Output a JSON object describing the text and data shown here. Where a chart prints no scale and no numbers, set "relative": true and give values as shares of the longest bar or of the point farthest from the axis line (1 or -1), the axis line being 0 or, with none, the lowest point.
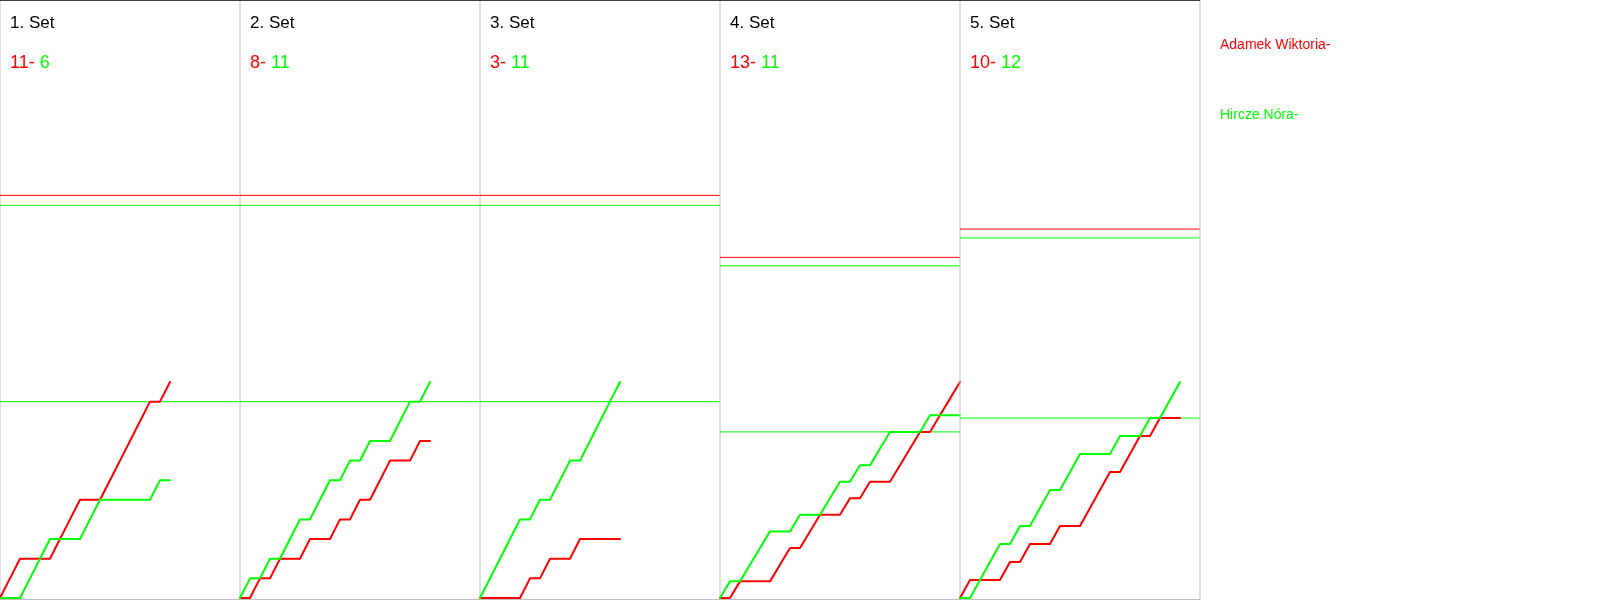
{
  "chart_data": [
    {
      "type": "line",
      "title": "1. Set",
      "annotations": [
        "11-",
        "6"
      ],
      "relative": true,
      "categories": [
        null,
        null,
        null,
        null,
        null,
        null,
        null,
        null,
        null,
        null,
        null,
        null,
        null,
        null,
        null,
        null,
        null,
        null,
        null,
        null,
        null,
        null,
        null,
        null,
        null
      ],
      "series": [
        {
          "color": "#ff0000",
          "values": [
            0,
            0.091,
            0.182,
            0.182,
            0.182,
            0.182,
            0.273,
            0.364,
            0.455,
            0.455,
            0.455,
            0.545,
            0.636,
            0.727,
            0.818,
            0.909,
            0.909,
            1,
            null,
            null,
            null,
            null,
            null,
            null,
            null
          ]
        },
        {
          "color": "#00ff00",
          "values": [
            0,
            0,
            0,
            0.091,
            0.182,
            0.273,
            0.273,
            0.273,
            0.273,
            0.364,
            0.455,
            0.455,
            0.455,
            0.455,
            0.455,
            0.455,
            0.545,
            0.545,
            null,
            null,
            null,
            null,
            null,
            null,
            null
          ]
        }
      ],
      "ref_lines": [
        {
          "axis": "y",
          "value": 1.864,
          "color": "#ff0000"
        },
        {
          "axis": "y",
          "value": 1.818,
          "color": "#00ff00"
        },
        {
          "axis": "y",
          "value": 0.909,
          "color": "#00ff00"
        }
      ]
    },
    {
      "type": "line",
      "title": "2. Set",
      "annotations": [
        "8-",
        "11"
      ],
      "relative": true,
      "categories": [
        null,
        null,
        null,
        null,
        null,
        null,
        null,
        null,
        null,
        null,
        null,
        null,
        null,
        null,
        null,
        null,
        null,
        null,
        null,
        null,
        null,
        null,
        null,
        null,
        null
      ],
      "series": [
        {
          "color": "#ff0000",
          "values": [
            0,
            0,
            0.091,
            0.091,
            0.182,
            0.182,
            0.182,
            0.273,
            0.273,
            0.273,
            0.364,
            0.364,
            0.455,
            0.455,
            0.545,
            0.636,
            0.636,
            0.636,
            0.727,
            0.727,
            null,
            null,
            null,
            null,
            null
          ]
        },
        {
          "color": "#00ff00",
          "values": [
            0,
            0.091,
            0.091,
            0.182,
            0.182,
            0.273,
            0.364,
            0.364,
            0.455,
            0.545,
            0.545,
            0.636,
            0.636,
            0.727,
            0.727,
            0.727,
            0.818,
            0.909,
            0.909,
            1,
            null,
            null,
            null,
            null,
            null
          ]
        }
      ],
      "ref_lines": [
        {
          "axis": "y",
          "value": 1.864,
          "color": "#ff0000"
        },
        {
          "axis": "y",
          "value": 1.818,
          "color": "#00ff00"
        },
        {
          "axis": "y",
          "value": 0.909,
          "color": "#00ff00"
        }
      ]
    },
    {
      "type": "line",
      "title": "3. Set",
      "annotations": [
        "3-",
        "11"
      ],
      "relative": true,
      "categories": [
        null,
        null,
        null,
        null,
        null,
        null,
        null,
        null,
        null,
        null,
        null,
        null,
        null,
        null,
        null,
        null,
        null,
        null,
        null,
        null,
        null,
        null,
        null,
        null,
        null
      ],
      "series": [
        {
          "color": "#ff0000",
          "values": [
            0,
            0,
            0,
            0,
            0,
            0.091,
            0.091,
            0.182,
            0.182,
            0.182,
            0.273,
            0.273,
            0.273,
            0.273,
            0.273,
            null,
            null,
            null,
            null,
            null,
            null,
            null,
            null,
            null,
            null
          ]
        },
        {
          "color": "#00ff00",
          "values": [
            0,
            0.091,
            0.182,
            0.273,
            0.364,
            0.364,
            0.455,
            0.455,
            0.545,
            0.636,
            0.636,
            0.727,
            0.818,
            0.909,
            1,
            null,
            null,
            null,
            null,
            null,
            null,
            null,
            null,
            null,
            null
          ]
        }
      ],
      "ref_lines": [
        {
          "axis": "y",
          "value": 1.864,
          "color": "#ff0000"
        },
        {
          "axis": "y",
          "value": 1.818,
          "color": "#00ff00"
        },
        {
          "axis": "y",
          "value": 0.909,
          "color": "#00ff00"
        }
      ]
    },
    {
      "type": "line",
      "title": "4. Set",
      "annotations": [
        "13-",
        "11"
      ],
      "relative": true,
      "categories": [
        null,
        null,
        null,
        null,
        null,
        null,
        null,
        null,
        null,
        null,
        null,
        null,
        null,
        null,
        null,
        null,
        null,
        null,
        null,
        null,
        null,
        null,
        null,
        null,
        null
      ],
      "series": [
        {
          "color": "#ff0000",
          "values": [
            0,
            0,
            0.077,
            0.077,
            0.077,
            0.077,
            0.154,
            0.231,
            0.231,
            0.308,
            0.385,
            0.385,
            0.385,
            0.462,
            0.462,
            0.538,
            0.538,
            0.538,
            0.615,
            0.692,
            0.769,
            0.769,
            0.846,
            0.923,
            1
          ]
        },
        {
          "color": "#00ff00",
          "values": [
            0,
            0.077,
            0.077,
            0.154,
            0.231,
            0.308,
            0.308,
            0.308,
            0.385,
            0.385,
            0.385,
            0.462,
            0.538,
            0.538,
            0.615,
            0.615,
            0.692,
            0.769,
            0.769,
            0.769,
            0.769,
            0.846,
            0.846,
            0.846,
            0.846
          ]
        }
      ],
      "ref_lines": [
        {
          "axis": "y",
          "value": 1.577,
          "color": "#ff0000"
        },
        {
          "axis": "y",
          "value": 1.538,
          "color": "#00ff00"
        },
        {
          "axis": "y",
          "value": 0.769,
          "color": "#00ff00"
        }
      ]
    },
    {
      "type": "line",
      "title": "5. Set",
      "annotations": [
        "10-",
        "12"
      ],
      "relative": true,
      "categories": [
        null,
        null,
        null,
        null,
        null,
        null,
        null,
        null,
        null,
        null,
        null,
        null,
        null,
        null,
        null,
        null,
        null,
        null,
        null,
        null,
        null,
        null,
        null,
        null,
        null
      ],
      "series": [
        {
          "name": "Adamek Wiktoria-",
          "color": "#ff0000",
          "values": [
            0,
            0.083,
            0.083,
            0.083,
            0.083,
            0.167,
            0.167,
            0.25,
            0.25,
            0.25,
            0.333,
            0.333,
            0.333,
            0.417,
            0.5,
            0.583,
            0.583,
            0.667,
            0.75,
            0.75,
            0.833,
            0.833,
            0.833,
            null,
            null
          ]
        },
        {
          "name": "Hircze Nóra-",
          "color": "#00ff00",
          "values": [
            0,
            0,
            0.083,
            0.167,
            0.25,
            0.25,
            0.333,
            0.333,
            0.417,
            0.5,
            0.5,
            0.583,
            0.667,
            0.667,
            0.667,
            0.667,
            0.75,
            0.75,
            0.75,
            0.833,
            0.833,
            0.917,
            1,
            null,
            null
          ]
        }
      ],
      "ref_lines": [
        {
          "axis": "y",
          "value": 1.708,
          "color": "#ff0000"
        },
        {
          "axis": "y",
          "value": 1.667,
          "color": "#00ff00"
        },
        {
          "axis": "y",
          "value": 0.833,
          "color": "#00ff00"
        }
      ]
    }
  ]
}
